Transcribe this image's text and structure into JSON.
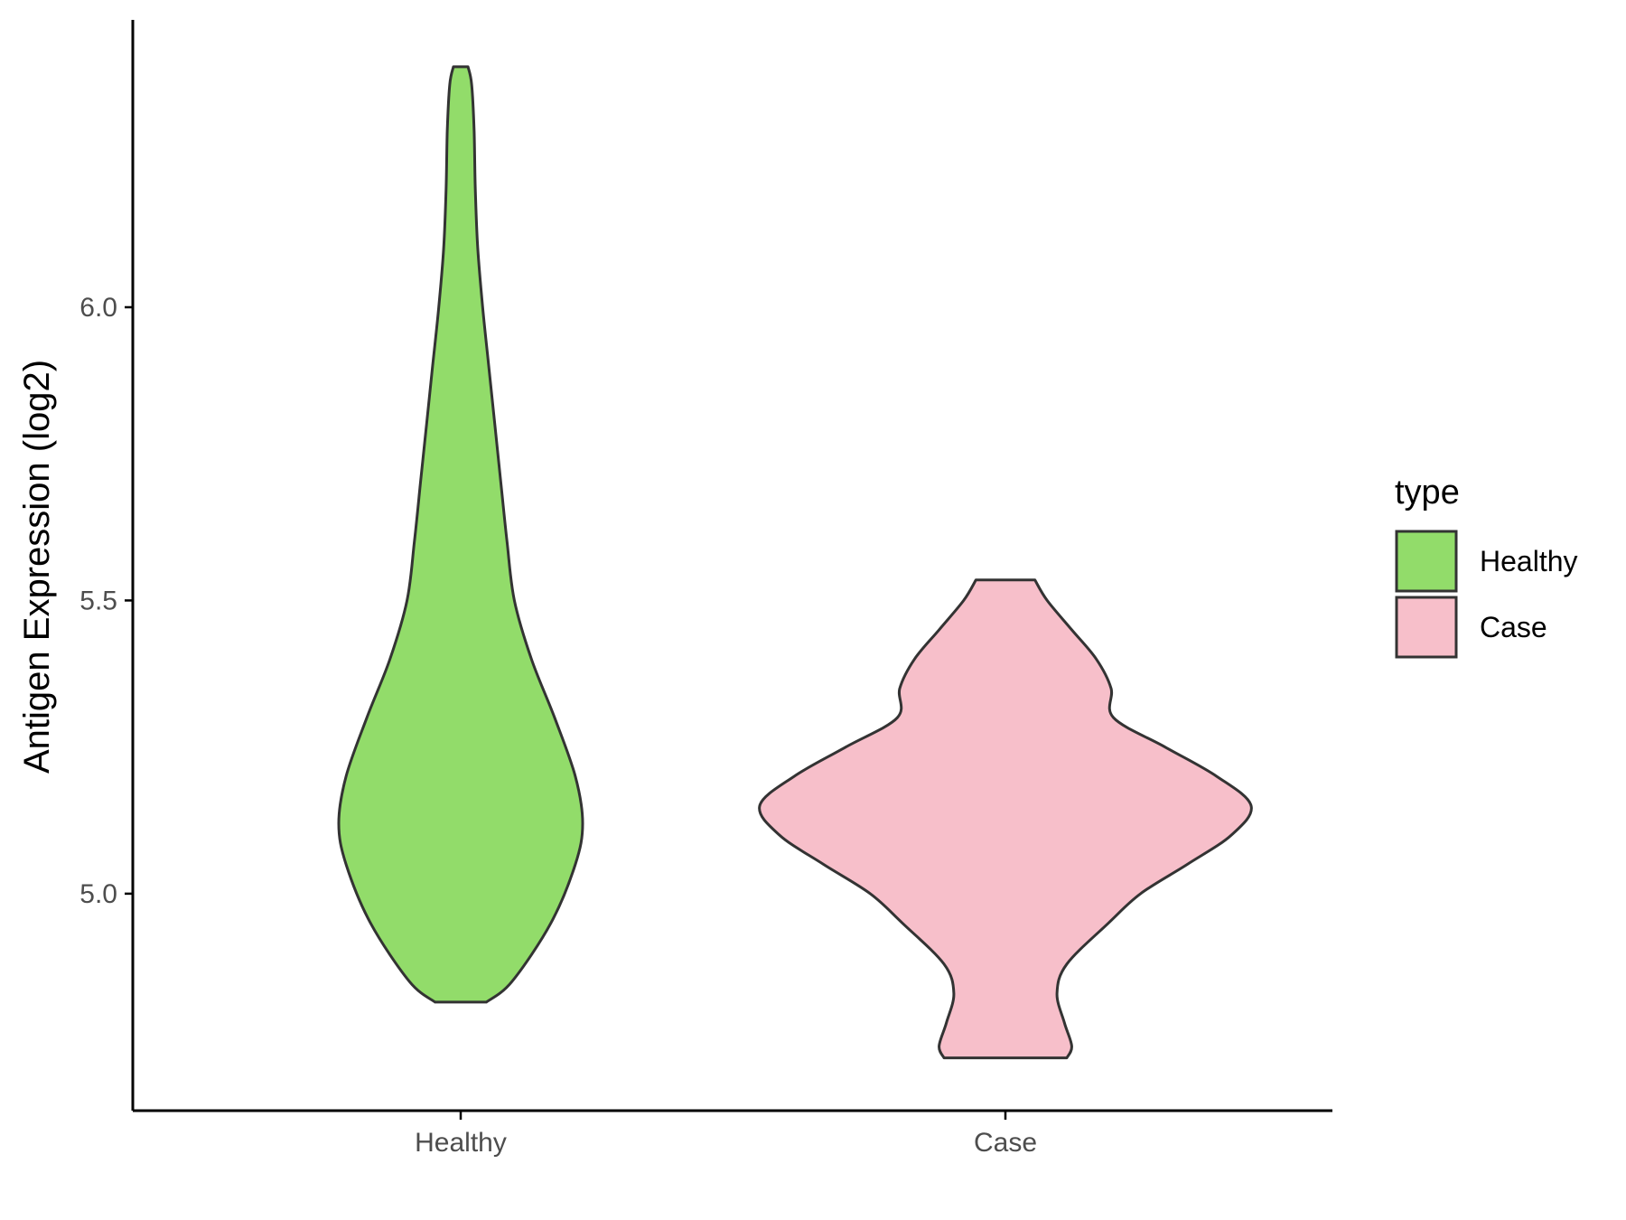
{
  "chart_data": {
    "type": "violin",
    "title": "",
    "xlabel": "",
    "ylabel": "Antigen Expression (log2)",
    "categories": [
      "Healthy",
      "Case"
    ],
    "yticks": [
      "5.0",
      "5.5",
      "6.0"
    ],
    "ylim": [
      4.63,
      6.49
    ],
    "grid": false,
    "legend": {
      "title": "type",
      "position": "right",
      "entries": [
        {
          "label": "Healthy",
          "color": "#92dc6a"
        },
        {
          "label": "Case",
          "color": "#f7bfca"
        }
      ]
    },
    "series": [
      {
        "name": "Healthy",
        "color": "#92dc6a",
        "min": 4.815,
        "max": 6.41,
        "profile": [
          [
            4.815,
            0.21
          ],
          [
            4.85,
            0.42
          ],
          [
            4.95,
            0.74
          ],
          [
            5.05,
            0.94
          ],
          [
            5.12,
            1.0
          ],
          [
            5.2,
            0.94
          ],
          [
            5.3,
            0.77
          ],
          [
            5.4,
            0.58
          ],
          [
            5.5,
            0.44
          ],
          [
            5.6,
            0.38
          ],
          [
            5.7,
            0.33
          ],
          [
            5.8,
            0.28
          ],
          [
            5.9,
            0.23
          ],
          [
            6.0,
            0.18
          ],
          [
            6.1,
            0.14
          ],
          [
            6.2,
            0.12
          ],
          [
            6.3,
            0.11
          ],
          [
            6.38,
            0.09
          ],
          [
            6.41,
            0.06
          ]
        ]
      },
      {
        "name": "Case",
        "color": "#f7bfca",
        "min": 4.72,
        "max": 5.535,
        "profile": [
          [
            4.72,
            0.25
          ],
          [
            4.74,
            0.27
          ],
          [
            4.78,
            0.24
          ],
          [
            4.83,
            0.21
          ],
          [
            4.88,
            0.25
          ],
          [
            4.95,
            0.42
          ],
          [
            5.0,
            0.55
          ],
          [
            5.05,
            0.74
          ],
          [
            5.1,
            0.92
          ],
          [
            5.15,
            1.0
          ],
          [
            5.2,
            0.86
          ],
          [
            5.25,
            0.65
          ],
          [
            5.3,
            0.44
          ],
          [
            5.35,
            0.43
          ],
          [
            5.4,
            0.37
          ],
          [
            5.45,
            0.27
          ],
          [
            5.5,
            0.17
          ],
          [
            5.535,
            0.12
          ]
        ]
      }
    ]
  }
}
